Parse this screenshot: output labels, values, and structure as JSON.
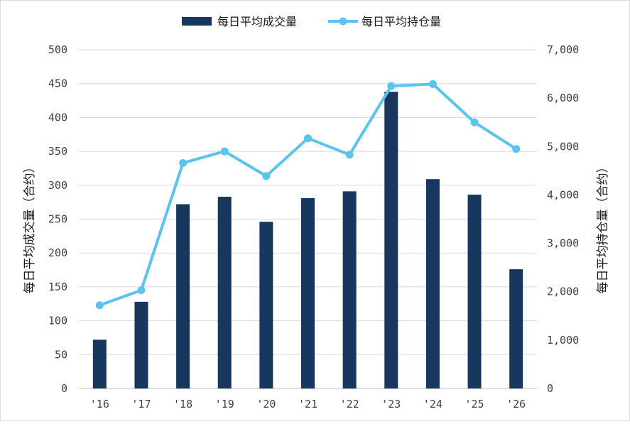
{
  "chart_data": {
    "type": "bar+line",
    "categories": [
      "'16",
      "'17",
      "'18",
      "'19",
      "'20",
      "'21",
      "'22",
      "'23",
      "'24",
      "'25",
      "'26"
    ],
    "series": [
      {
        "name": "每日平均成交量",
        "type": "bar",
        "axis": "left",
        "color": "#17375e",
        "values": [
          72,
          128,
          272,
          283,
          246,
          281,
          291,
          438,
          309,
          286,
          176
        ]
      },
      {
        "name": "每日平均持仓量",
        "type": "line",
        "axis": "right",
        "color": "#5bc4ec",
        "values": [
          1720,
          2030,
          4660,
          4900,
          4390,
          5170,
          4830,
          6250,
          6290,
          5500,
          4950
        ]
      }
    ],
    "ylabel": "每日平均成交量（合约）",
    "y2label": "每日平均持仓量（合约）",
    "ylim": [
      0,
      500
    ],
    "y2lim": [
      0,
      7000
    ],
    "yticks": [
      "0",
      "50",
      "100",
      "150",
      "200",
      "250",
      "300",
      "350",
      "400",
      "450",
      "500"
    ],
    "y2ticks": [
      "0",
      "1,000",
      "2,000",
      "3,000",
      "4,000",
      "5,000",
      "6,000",
      "7,000"
    ],
    "grid": true,
    "legend": "top-center"
  }
}
